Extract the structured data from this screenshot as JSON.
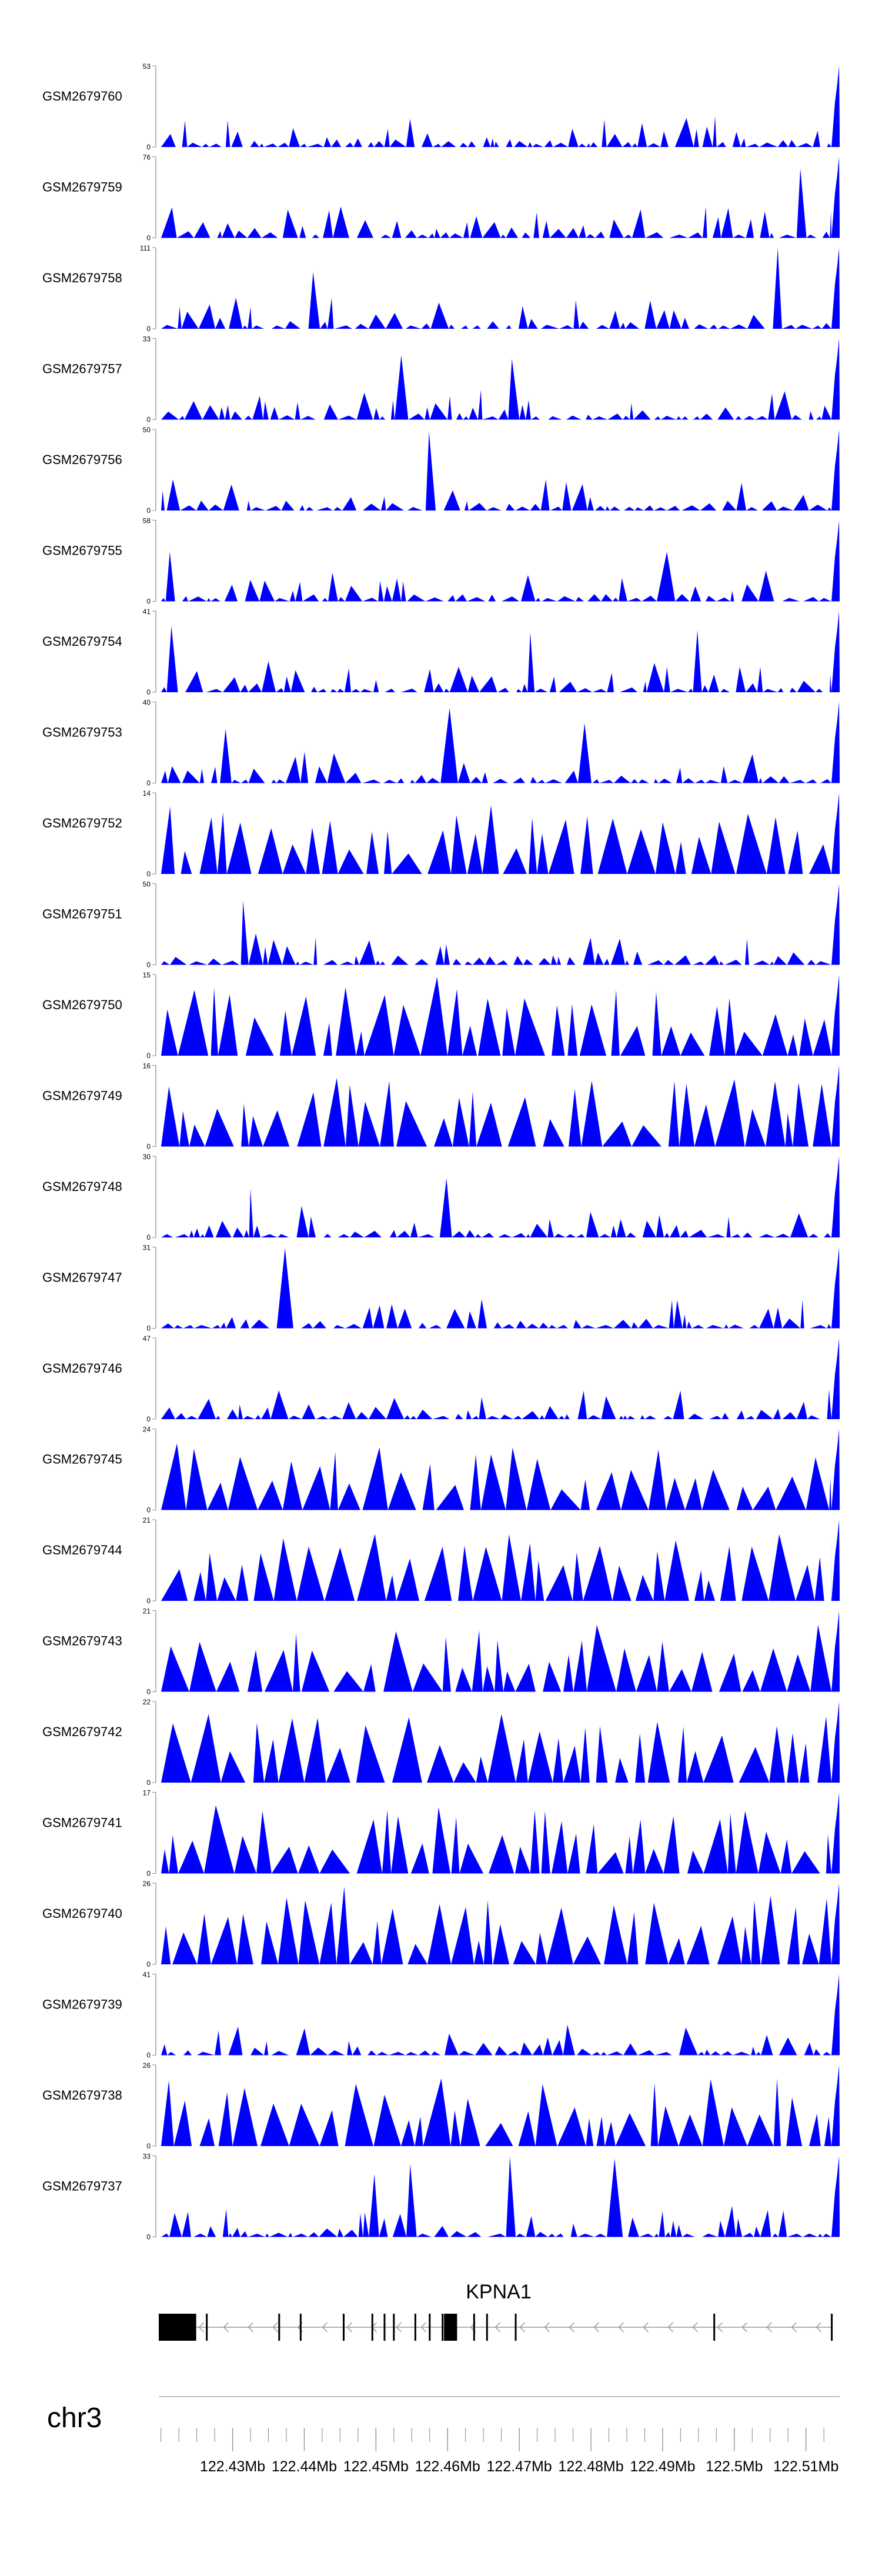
{
  "chart_data": {
    "type": "area",
    "title": "",
    "chromosome": "chr3",
    "x_axis": {
      "ticks": [
        "122.43Mb",
        "122.44Mb",
        "122.45Mb",
        "122.46Mb",
        "122.47Mb",
        "122.48Mb",
        "122.49Mb",
        "122.5Mb",
        "122.51Mb"
      ],
      "xlim": [
        122.4197,
        122.5147
      ]
    },
    "tracks": [
      {
        "name": "GSM2679760",
        "ymax": 53,
        "ymin": 0
      },
      {
        "name": "GSM2679759",
        "ymax": 76,
        "ymin": 0
      },
      {
        "name": "GSM2679758",
        "ymax": 111,
        "ymin": 0
      },
      {
        "name": "GSM2679757",
        "ymax": 33,
        "ymin": 0
      },
      {
        "name": "GSM2679756",
        "ymax": 50,
        "ymin": 0
      },
      {
        "name": "GSM2679755",
        "ymax": 58,
        "ymin": 0
      },
      {
        "name": "GSM2679754",
        "ymax": 41,
        "ymin": 0
      },
      {
        "name": "GSM2679753",
        "ymax": 40,
        "ymin": 0
      },
      {
        "name": "GSM2679752",
        "ymax": 14,
        "ymin": 0
      },
      {
        "name": "GSM2679751",
        "ymax": 50,
        "ymin": 0
      },
      {
        "name": "GSM2679750",
        "ymax": 15,
        "ymin": 0
      },
      {
        "name": "GSM2679749",
        "ymax": 16,
        "ymin": 0
      },
      {
        "name": "GSM2679748",
        "ymax": 30,
        "ymin": 0
      },
      {
        "name": "GSM2679747",
        "ymax": 31,
        "ymin": 0
      },
      {
        "name": "GSM2679746",
        "ymax": 47,
        "ymin": 0
      },
      {
        "name": "GSM2679745",
        "ymax": 24,
        "ymin": 0
      },
      {
        "name": "GSM2679744",
        "ymax": 21,
        "ymin": 0
      },
      {
        "name": "GSM2679743",
        "ymax": 21,
        "ymin": 0
      },
      {
        "name": "GSM2679742",
        "ymax": 22,
        "ymin": 0
      },
      {
        "name": "GSM2679741",
        "ymax": 17,
        "ymin": 0
      },
      {
        "name": "GSM2679740",
        "ymax": 26,
        "ymin": 0
      },
      {
        "name": "GSM2679739",
        "ymax": 41,
        "ymin": 0
      },
      {
        "name": "GSM2679738",
        "ymax": 26,
        "ymin": 0
      },
      {
        "name": "GSM2679737",
        "ymax": 33,
        "ymin": 0
      }
    ],
    "gene": {
      "name": "KPNA1",
      "strand": "-",
      "exons": [
        122.4204,
        122.4248,
        122.4264,
        122.4365,
        122.4395,
        122.4455,
        122.4495,
        122.4512,
        122.4525,
        122.4555,
        122.4575,
        122.4593,
        122.4612,
        122.4637,
        122.4655,
        122.4695,
        122.4972,
        122.5136
      ]
    },
    "colors": {
      "signal": "#0000ff",
      "axis": "#888888",
      "gene": "#000000",
      "text": "#000000"
    },
    "grid": false
  }
}
